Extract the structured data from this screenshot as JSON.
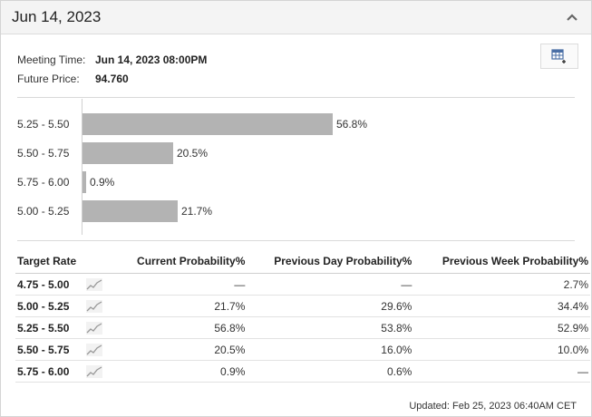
{
  "header": {
    "title": "Jun 14, 2023"
  },
  "meta": {
    "meeting_time_label": "Meeting Time:",
    "meeting_time_value": "Jun 14, 2023 08:00PM",
    "future_price_label": "Future Price:",
    "future_price_value": "94.760"
  },
  "chart_data": {
    "type": "bar",
    "orientation": "horizontal",
    "categories": [
      "5.25 - 5.50",
      "5.50 - 5.75",
      "5.75 - 6.00",
      "5.00 - 5.25"
    ],
    "values": [
      56.8,
      20.5,
      0.9,
      21.7
    ],
    "value_labels": [
      "56.8%",
      "20.5%",
      "0.9%",
      "21.7%"
    ],
    "unit": "%",
    "xlim": [
      0,
      100
    ],
    "bar_color": "#b3b3b3"
  },
  "table": {
    "headers": [
      "Target Rate",
      "Current Probability%",
      "Previous Day Probability%",
      "Previous Week Probability%"
    ],
    "rows": [
      {
        "rate": "4.75 - 5.00",
        "current": "—",
        "prev_day": "—",
        "prev_week": "2.7%"
      },
      {
        "rate": "5.00 - 5.25",
        "current": "21.7%",
        "prev_day": "29.6%",
        "prev_week": "34.4%"
      },
      {
        "rate": "5.25 - 5.50",
        "current": "56.8%",
        "prev_day": "53.8%",
        "prev_week": "52.9%"
      },
      {
        "rate": "5.50 - 5.75",
        "current": "20.5%",
        "prev_day": "16.0%",
        "prev_week": "10.0%"
      },
      {
        "rate": "5.75 - 6.00",
        "current": "0.9%",
        "prev_day": "0.6%",
        "prev_week": "—"
      }
    ]
  },
  "footer": {
    "updated": "Updated: Feb 25, 2023 06:40AM CET"
  },
  "icons": {
    "collapse": "chevron-up-icon",
    "table": "table-plus-icon",
    "spark": "sparkline-icon"
  }
}
